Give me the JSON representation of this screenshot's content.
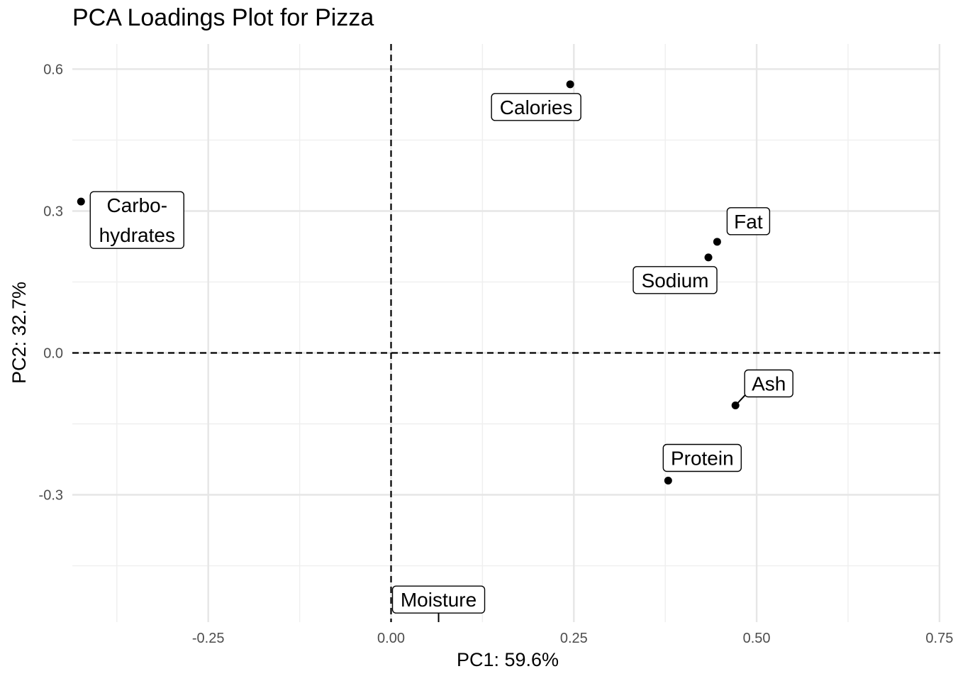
{
  "chart_data": {
    "type": "scatter",
    "title": "PCA Loadings Plot for Pizza",
    "xlabel": "PC1: 59.6%",
    "ylabel": "PC2: 32.7%",
    "xlim": [
      -0.435,
      0.75
    ],
    "ylim": [
      -0.57,
      0.655
    ],
    "x_ticks": [
      -0.25,
      0.0,
      0.25,
      0.5,
      0.75
    ],
    "x_tick_labels": [
      "-0.25",
      "0.00",
      "0.25",
      "0.50",
      "0.75"
    ],
    "y_ticks": [
      -0.3,
      0.0,
      0.3,
      0.6
    ],
    "y_tick_labels": [
      "-0.3",
      "0.0",
      "0.3",
      "0.6"
    ],
    "grid": true,
    "reference_lines": {
      "x": 0,
      "y": 0,
      "style": "dashed"
    },
    "points": [
      {
        "label": "Calories",
        "x": 0.245,
        "y": 0.568,
        "label_lines": [
          "Calories"
        ]
      },
      {
        "label": "Carbohydrates",
        "x": -0.424,
        "y": 0.32,
        "label_lines": [
          "Carbo-",
          "hydrates"
        ]
      },
      {
        "label": "Fat",
        "x": 0.446,
        "y": 0.235,
        "label_lines": [
          "Fat"
        ]
      },
      {
        "label": "Sodium",
        "x": 0.434,
        "y": 0.202,
        "label_lines": [
          "Sodium"
        ]
      },
      {
        "label": "Ash",
        "x": 0.471,
        "y": -0.111,
        "label_lines": [
          "Ash"
        ]
      },
      {
        "label": "Protein",
        "x": 0.379,
        "y": -0.27,
        "label_lines": [
          "Protein"
        ]
      },
      {
        "label": "Moisture",
        "x": 0.065,
        "y": -0.61,
        "label_lines": [
          "Moisture"
        ]
      }
    ]
  }
}
